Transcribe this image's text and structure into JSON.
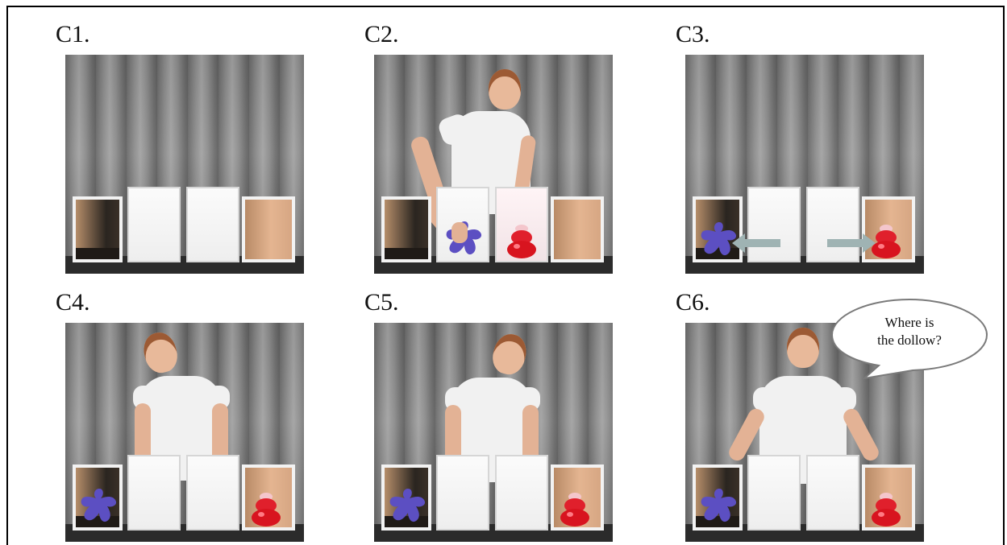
{
  "panels": [
    {
      "id": "c1",
      "label": "C1."
    },
    {
      "id": "c2",
      "label": "C2."
    },
    {
      "id": "c3",
      "label": "C3."
    },
    {
      "id": "c4",
      "label": "C4."
    },
    {
      "id": "c5",
      "label": "C5."
    },
    {
      "id": "c6",
      "label": "C6."
    }
  ],
  "speech_bubble": {
    "line1": "Where is",
    "line2": "the dollow?"
  },
  "colors": {
    "curtain": "#8a8a8a",
    "table": "#2b2b2b",
    "purple_object": "#5c4fc2",
    "red_object": "#e0202c",
    "open_box_inside": "#e4b591",
    "arrow": "#9fb3b3"
  }
}
